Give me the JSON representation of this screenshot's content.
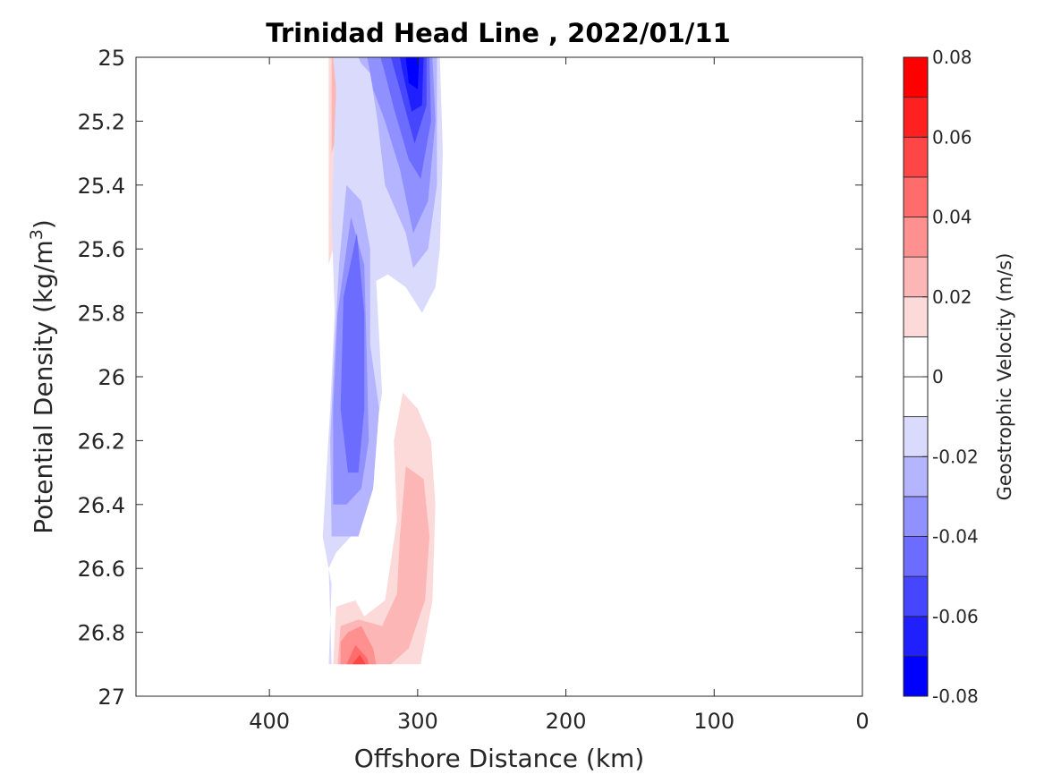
{
  "chart_data": {
    "type": "heatmap",
    "title": "Trinidad Head Line , 2022/01/11",
    "xlabel": "Offshore Distance (km)",
    "ylabel_main": "Potential Density (kg/m",
    "ylabel_sup": "3",
    "ylabel_close": ")",
    "xlim": [
      490,
      0
    ],
    "ylim": [
      25,
      27
    ],
    "y_reversed": true,
    "xticks": [
      "400",
      "300",
      "200",
      "100",
      "0"
    ],
    "xtick_values": [
      400,
      300,
      200,
      100,
      0
    ],
    "yticks": [
      "25",
      "25.2",
      "25.4",
      "25.6",
      "25.8",
      "26",
      "26.2",
      "26.4",
      "26.6",
      "26.8",
      "27"
    ],
    "ytick_values": [
      25,
      25.2,
      25.4,
      25.6,
      25.8,
      26,
      26.2,
      26.4,
      26.6,
      26.8,
      27
    ],
    "colorbar": {
      "label": "Geostrophic Velocity (m/s)",
      "range": [
        -0.08,
        0.08
      ],
      "ticks": [
        "-0.08",
        "-0.06",
        "-0.04",
        "-0.02",
        "0",
        "0.02",
        "0.04",
        "0.06",
        "0.08"
      ],
      "tick_values": [
        -0.08,
        -0.06,
        -0.04,
        -0.02,
        0,
        0.02,
        0.04,
        0.06,
        0.08
      ],
      "levels": [
        {
          "lo": -0.08,
          "hi": -0.07,
          "color": "#0000ff"
        },
        {
          "lo": -0.07,
          "hi": -0.06,
          "color": "#2020ff"
        },
        {
          "lo": -0.06,
          "hi": -0.05,
          "color": "#4646ff"
        },
        {
          "lo": -0.05,
          "hi": -0.04,
          "color": "#6c6cff"
        },
        {
          "lo": -0.04,
          "hi": -0.03,
          "color": "#9090ff"
        },
        {
          "lo": -0.03,
          "hi": -0.02,
          "color": "#b4b4ff"
        },
        {
          "lo": -0.02,
          "hi": -0.01,
          "color": "#dadafd"
        },
        {
          "lo": -0.01,
          "hi": 0.0,
          "color": "#ffffff"
        },
        {
          "lo": 0.0,
          "hi": 0.01,
          "color": "#ffffff"
        },
        {
          "lo": 0.01,
          "hi": 0.02,
          "color": "#fddada"
        },
        {
          "lo": 0.02,
          "hi": 0.03,
          "color": "#fdb6b6"
        },
        {
          "lo": 0.03,
          "hi": 0.04,
          "color": "#ff9090"
        },
        {
          "lo": 0.04,
          "hi": 0.05,
          "color": "#ff6c6c"
        },
        {
          "lo": 0.05,
          "hi": 0.06,
          "color": "#ff4646"
        },
        {
          "lo": 0.06,
          "hi": 0.07,
          "color": "#ff2020"
        },
        {
          "lo": 0.07,
          "hi": 0.08,
          "color": "#ff0000"
        }
      ]
    },
    "contour_regions": [
      {
        "value": 0.015,
        "color": "#fddada",
        "points": [
          [
            360,
            25
          ],
          [
            354,
            25
          ],
          [
            352,
            25.3
          ],
          [
            354,
            25.55
          ],
          [
            360,
            25.65
          ]
        ]
      },
      {
        "value": 0.025,
        "color": "#fdb6b6",
        "points": [
          [
            358,
            25
          ],
          [
            355,
            25
          ],
          [
            355,
            25.25
          ],
          [
            358,
            25.3
          ]
        ]
      },
      {
        "value": -0.015,
        "color": "#dadafd",
        "points": [
          [
            357,
            25
          ],
          [
            285,
            25
          ],
          [
            283,
            25.3
          ],
          [
            285,
            25.6
          ],
          [
            288,
            25.72
          ],
          [
            297,
            25.8
          ],
          [
            308,
            25.72
          ],
          [
            320,
            25.68
          ],
          [
            328,
            25.7
          ],
          [
            324,
            26.05
          ],
          [
            336,
            26.4
          ],
          [
            345,
            26.5
          ],
          [
            355,
            26.55
          ],
          [
            360,
            26.6
          ],
          [
            358,
            26.9
          ],
          [
            360,
            26.9
          ],
          [
            358,
            26.65
          ],
          [
            364,
            26.5
          ],
          [
            359,
            26.1
          ],
          [
            356,
            25.8
          ],
          [
            358,
            25.5
          ],
          [
            355,
            25.1
          ]
        ]
      },
      {
        "value": -0.025,
        "color": "#b4b4ff",
        "points": [
          [
            340,
            25
          ],
          [
            287,
            25
          ],
          [
            287,
            25.4
          ],
          [
            293,
            25.6
          ],
          [
            303,
            25.66
          ],
          [
            308,
            25.55
          ],
          [
            322,
            25.4
          ],
          [
            327,
            25.2
          ],
          [
            332,
            25.05
          ],
          [
            338,
            25.02
          ]
        ]
      },
      {
        "value": -0.025,
        "color": "#b4b4ff",
        "points": [
          [
            348,
            25.4
          ],
          [
            338,
            25.45
          ],
          [
            332,
            25.6
          ],
          [
            332,
            25.9
          ],
          [
            326,
            26.1
          ],
          [
            330,
            26.35
          ],
          [
            340,
            26.5
          ],
          [
            358,
            26.5
          ],
          [
            359,
            26.2
          ],
          [
            356,
            25.9
          ],
          [
            353,
            25.65
          ]
        ]
      },
      {
        "value": -0.035,
        "color": "#9090ff",
        "points": [
          [
            334,
            25
          ],
          [
            290,
            25
          ],
          [
            288,
            25.2
          ],
          [
            293,
            25.45
          ],
          [
            303,
            25.55
          ],
          [
            312,
            25.35
          ],
          [
            322,
            25.2
          ],
          [
            330,
            25.1
          ]
        ]
      },
      {
        "value": -0.035,
        "color": "#9090ff",
        "points": [
          [
            345,
            25.5
          ],
          [
            336,
            25.65
          ],
          [
            334,
            26
          ],
          [
            333,
            26.2
          ],
          [
            338,
            26.35
          ],
          [
            348,
            26.4
          ],
          [
            357,
            26.4
          ],
          [
            357,
            26.1
          ],
          [
            354,
            25.8
          ]
        ]
      },
      {
        "value": -0.045,
        "color": "#6c6cff",
        "points": [
          [
            325,
            25
          ],
          [
            292,
            25
          ],
          [
            291,
            25.2
          ],
          [
            298,
            25.38
          ],
          [
            306,
            25.32
          ],
          [
            316,
            25.16
          ],
          [
            322,
            25.05
          ]
        ]
      },
      {
        "value": -0.045,
        "color": "#6c6cff",
        "points": [
          [
            341,
            25.55
          ],
          [
            336,
            25.8
          ],
          [
            336,
            26.1
          ],
          [
            340,
            26.3
          ],
          [
            347,
            26.3
          ],
          [
            352,
            26.1
          ],
          [
            350,
            25.75
          ]
        ]
      },
      {
        "value": -0.055,
        "color": "#4646ff",
        "points": [
          [
            318,
            25
          ],
          [
            294,
            25
          ],
          [
            294,
            25.15
          ],
          [
            302,
            25.27
          ],
          [
            312,
            25.1
          ]
        ]
      },
      {
        "value": -0.065,
        "color": "#2020ff",
        "points": [
          [
            312,
            25
          ],
          [
            296,
            25
          ],
          [
            297,
            25.15
          ],
          [
            304,
            25.17
          ],
          [
            310,
            25.05
          ]
        ]
      },
      {
        "value": -0.075,
        "color": "#0000ff",
        "points": [
          [
            308,
            25
          ],
          [
            299,
            25
          ],
          [
            300,
            25.1
          ],
          [
            306,
            25.08
          ]
        ]
      },
      {
        "value": 0.015,
        "color": "#fddada",
        "points": [
          [
            310,
            26.05
          ],
          [
            316,
            26.2
          ],
          [
            314,
            26.45
          ],
          [
            322,
            26.7
          ],
          [
            336,
            26.75
          ],
          [
            342,
            26.7
          ],
          [
            355,
            26.72
          ],
          [
            357,
            26.9
          ],
          [
            298,
            26.9
          ],
          [
            290,
            26.7
          ],
          [
            288,
            26.4
          ],
          [
            291,
            26.2
          ],
          [
            300,
            26.1
          ]
        ]
      },
      {
        "value": 0.025,
        "color": "#fdb6b6",
        "points": [
          [
            308,
            26.28
          ],
          [
            312,
            26.5
          ],
          [
            314,
            26.68
          ],
          [
            324,
            26.78
          ],
          [
            340,
            26.76
          ],
          [
            352,
            26.78
          ],
          [
            354,
            26.9
          ],
          [
            318,
            26.9
          ],
          [
            306,
            26.85
          ],
          [
            295,
            26.7
          ],
          [
            292,
            26.5
          ],
          [
            296,
            26.32
          ]
        ]
      },
      {
        "value": 0.035,
        "color": "#ff9090",
        "points": [
          [
            347,
            26.8
          ],
          [
            338,
            26.78
          ],
          [
            330,
            26.85
          ],
          [
            328,
            26.9
          ],
          [
            352,
            26.9
          ],
          [
            352,
            26.83
          ]
        ]
      },
      {
        "value": 0.045,
        "color": "#ff6c6c",
        "points": [
          [
            342,
            26.84
          ],
          [
            334,
            26.88
          ],
          [
            333,
            26.9
          ],
          [
            348,
            26.9
          ]
        ]
      },
      {
        "value": 0.055,
        "color": "#ff4646",
        "points": [
          [
            339,
            26.87
          ],
          [
            335,
            26.9
          ],
          [
            344,
            26.9
          ]
        ]
      }
    ]
  }
}
